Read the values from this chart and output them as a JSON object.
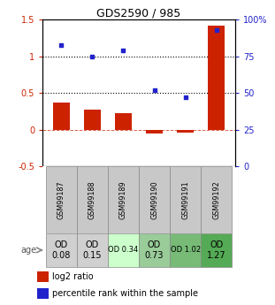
{
  "title": "GDS2590 / 985",
  "samples": [
    "GSM99187",
    "GSM99188",
    "GSM99189",
    "GSM99190",
    "GSM99191",
    "GSM99192"
  ],
  "log2_ratio": [
    0.37,
    0.27,
    0.22,
    -0.05,
    -0.04,
    1.42
  ],
  "percentile_rank": [
    83,
    75,
    79,
    52,
    47,
    93
  ],
  "bar_color": "#cc2200",
  "dot_color": "#2222cc",
  "ylim_left": [
    -0.5,
    1.5
  ],
  "ylim_right": [
    0,
    100
  ],
  "yticks_left": [
    -0.5,
    0,
    0.5,
    1.0,
    1.5
  ],
  "ytick_labels_left": [
    "-0.5",
    "0",
    "0.5",
    "1",
    "1.5"
  ],
  "yticks_right": [
    0,
    25,
    50,
    75,
    100
  ],
  "ytick_labels_right": [
    "0",
    "25",
    "50",
    "75",
    "100%"
  ],
  "hlines": [
    0.5,
    1.0
  ],
  "age_labels": [
    "OD\n0.08",
    "OD\n0.15",
    "OD 0.34",
    "OD\n0.73",
    "OD 1.02",
    "OD\n1.27"
  ],
  "age_bg_colors": [
    "#d0d0d0",
    "#d0d0d0",
    "#ccffcc",
    "#99cc99",
    "#77bb77",
    "#55aa55"
  ],
  "age_font_sizes": [
    7,
    7,
    6,
    7,
    6,
    7
  ],
  "legend_red": "log2 ratio",
  "legend_blue": "percentile rank within the sample",
  "age_label_text": "age",
  "fig_bg": "#ffffff"
}
